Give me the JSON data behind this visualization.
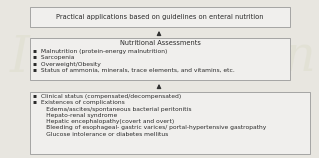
{
  "box1_lines": [
    "▪  Clinical status (compensated/decompensated)",
    "▪  Existences of complications",
    "       Edema/ascites/spontaneous bacterial peritonitis",
    "       Hepato-renal syndrome",
    "       Hepatic encephalopathy(covert and overt)",
    "       Bleeding of esophageal- gastric varices/ portal-hypertensive gastropathy",
    "       Glucose intolerance or diabetes mellitus"
  ],
  "box2_title": "Nutritional Assessments",
  "box2_lines": [
    "▪  Malnutrition (protein-energy malnutrition)",
    "▪  Sarcopenia",
    "▪  Overweight/Obesity",
    "▪  Status of ammonia, minerals, trace elements, and vitamins, etc."
  ],
  "box3_line": "Practical applications based on guidelines on enteral nutrition",
  "box_bg": "#f0efed",
  "box_edge": "#999999",
  "text_color": "#2a2a2a",
  "arrow_color": "#333333",
  "bg_color": "#e8e6e0",
  "title_fontsize": 4.8,
  "body_fontsize": 4.3
}
